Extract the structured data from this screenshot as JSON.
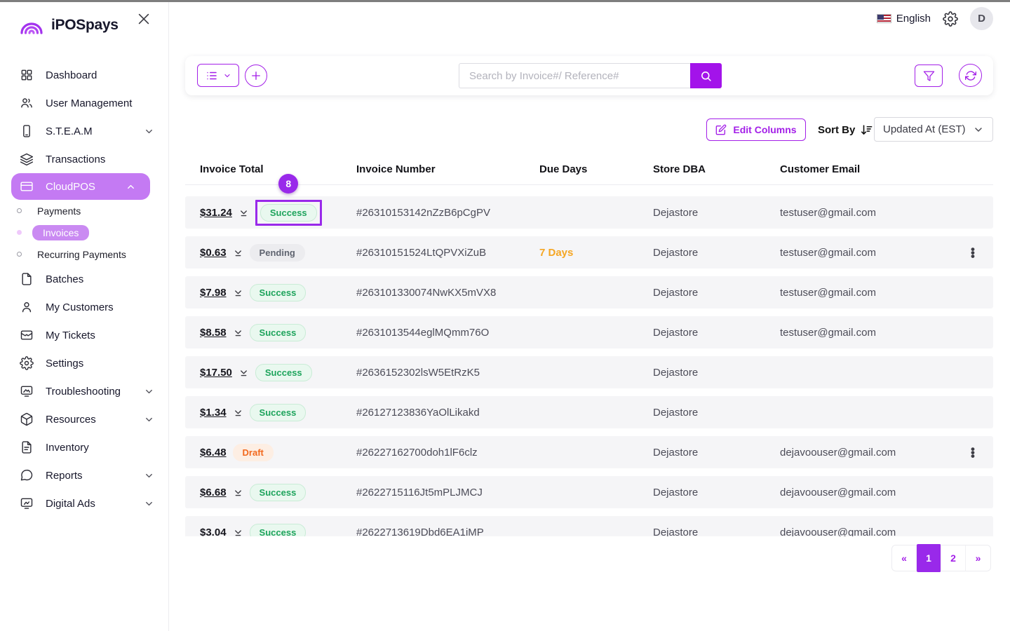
{
  "topbar": {
    "language": "English",
    "avatar_initial": "D"
  },
  "sidebar": {
    "logo_text": "iPOSpays",
    "items": [
      {
        "label": "Dashboard",
        "icon": "dashboard-icon"
      },
      {
        "label": "User Management",
        "icon": "users-icon"
      },
      {
        "label": "S.T.E.A.M",
        "icon": "device-icon",
        "chevron": "down"
      },
      {
        "label": "Transactions",
        "icon": "layers-icon"
      },
      {
        "label": "CloudPOS",
        "icon": "card-icon",
        "chevron": "up",
        "active": true
      },
      {
        "label": "Payments",
        "type": "child"
      },
      {
        "label": "Invoices",
        "type": "child",
        "active": true
      },
      {
        "label": "Recurring Payments",
        "type": "child"
      },
      {
        "label": "Batches",
        "icon": "batches-icon"
      },
      {
        "label": "My Customers",
        "icon": "person-icon"
      },
      {
        "label": "My Tickets",
        "icon": "ticket-icon"
      },
      {
        "label": "Settings",
        "icon": "settings-icon"
      },
      {
        "label": "Troubleshooting",
        "icon": "monitor-icon",
        "chevron": "down"
      },
      {
        "label": "Resources",
        "icon": "box-icon",
        "chevron": "down"
      },
      {
        "label": "Inventory",
        "icon": "inventory-icon"
      },
      {
        "label": "Reports",
        "icon": "reports-icon",
        "chevron": "down"
      },
      {
        "label": "Digital Ads",
        "icon": "ads-icon",
        "chevron": "down"
      }
    ]
  },
  "toolbar": {
    "search_placeholder": "Search by Invoice#/ Reference#"
  },
  "controls": {
    "edit_columns_label": "Edit Columns",
    "sort_by_label": "Sort By",
    "sort_value": "Updated At (EST)"
  },
  "table": {
    "columns": [
      "Invoice Total",
      "Invoice Number",
      "Due Days",
      "Store DBA",
      "Customer Email"
    ],
    "badge_count": "8",
    "rows": [
      {
        "total": "$31.24",
        "status": "Success",
        "status_type": "success",
        "invoice": "#26310153142nZzB6pCgPV",
        "due": "",
        "store": "Dejastore",
        "email": "testuser@gmail.com",
        "chevron": true,
        "kebab": false,
        "highlight": true
      },
      {
        "total": "$0.63",
        "status": "Pending",
        "status_type": "pending",
        "invoice": "#26310151524LtQPVXiZuB",
        "due": "7 Days",
        "store": "Dejastore",
        "email": "testuser@gmail.com",
        "chevron": true,
        "kebab": true,
        "highlight": false
      },
      {
        "total": "$7.98",
        "status": "Success",
        "status_type": "success",
        "invoice": "#263101330074NwKX5mVX8",
        "due": "",
        "store": "Dejastore",
        "email": "testuser@gmail.com",
        "chevron": true,
        "kebab": false,
        "highlight": false
      },
      {
        "total": "$8.58",
        "status": "Success",
        "status_type": "success",
        "invoice": "#2631013544eglMQmm76O",
        "due": "",
        "store": "Dejastore",
        "email": "testuser@gmail.com",
        "chevron": true,
        "kebab": false,
        "highlight": false
      },
      {
        "total": "$17.50",
        "status": "Success",
        "status_type": "success",
        "invoice": "#2636152302lsW5EtRzK5",
        "due": "",
        "store": "Dejastore",
        "email": "",
        "chevron": true,
        "kebab": false,
        "highlight": false
      },
      {
        "total": "$1.34",
        "status": "Success",
        "status_type": "success",
        "invoice": "#26127123836YaOlLikakd",
        "due": "",
        "store": "Dejastore",
        "email": "",
        "chevron": true,
        "kebab": false,
        "highlight": false
      },
      {
        "total": "$6.48",
        "status": "Draft",
        "status_type": "draft",
        "invoice": "#26227162700doh1lF6clz",
        "due": "",
        "store": "Dejastore",
        "email": "dejavoouser@gmail.com",
        "chevron": false,
        "kebab": true,
        "highlight": false
      },
      {
        "total": "$6.68",
        "status": "Success",
        "status_type": "success",
        "invoice": "#2622715116Jt5mPLJMCJ",
        "due": "",
        "store": "Dejastore",
        "email": "dejavoouser@gmail.com",
        "chevron": true,
        "kebab": false,
        "highlight": false
      },
      {
        "total": "$3.04",
        "status": "Success",
        "status_type": "success",
        "invoice": "#2622713619Dbd6EA1iMP",
        "due": "",
        "store": "Dejastore",
        "email": "dejavoouser@gmail.com",
        "chevron": true,
        "kebab": false,
        "highlight": false
      }
    ]
  },
  "pagination": {
    "prev": "«",
    "pages": [
      "1",
      "2"
    ],
    "active_page": "1",
    "next": "»"
  },
  "colors": {
    "accent_purple": "#a31fe8",
    "annotation_purple": "#9929ea",
    "sidebar_active": "#c47af3",
    "sidebar_subactive": "#ca8af2",
    "success_green": "#1ea45c",
    "draft_orange": "#f2691e",
    "due_orange": "#f5a623"
  }
}
